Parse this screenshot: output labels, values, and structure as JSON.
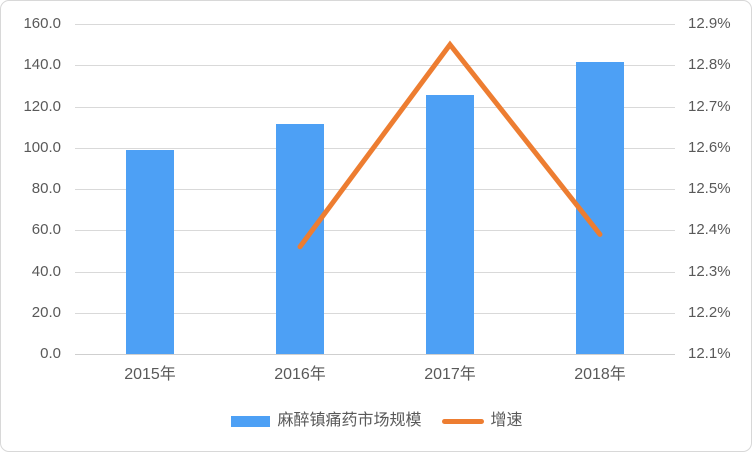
{
  "chart_data": {
    "type": "bar+line combo",
    "categories": [
      "2015年",
      "2016年",
      "2017年",
      "2018年"
    ],
    "series": [
      {
        "name": "麻醉镇痛药市场规模",
        "type": "bar",
        "axis": "left",
        "values": [
          98.9,
          111.4,
          125.8,
          141.5
        ],
        "color": "#4da0f5"
      },
      {
        "name": "增速",
        "type": "line",
        "axis": "right",
        "values": [
          null,
          12.36,
          12.85,
          12.39
        ],
        "color": "#ed7d31"
      }
    ],
    "left_axis": {
      "min": 0,
      "max": 160,
      "step": 20,
      "tick_labels": [
        "0.0",
        "20.0",
        "40.0",
        "60.0",
        "80.0",
        "100.0",
        "120.0",
        "140.0",
        "160.0"
      ]
    },
    "right_axis": {
      "min": 12.1,
      "max": 12.9,
      "step": 0.1,
      "tick_labels": [
        "12.1%",
        "12.2%",
        "12.3%",
        "12.4%",
        "12.5%",
        "12.6%",
        "12.7%",
        "12.8%",
        "12.9%"
      ]
    },
    "grid": true,
    "legend_position": "bottom",
    "colors": {
      "bar": "#4da0f5",
      "line": "#ed7d31",
      "gridline": "#d9d9d9",
      "axis_text": "#595959",
      "frame_border": "#d8d8d8",
      "background": "#ffffff"
    }
  }
}
